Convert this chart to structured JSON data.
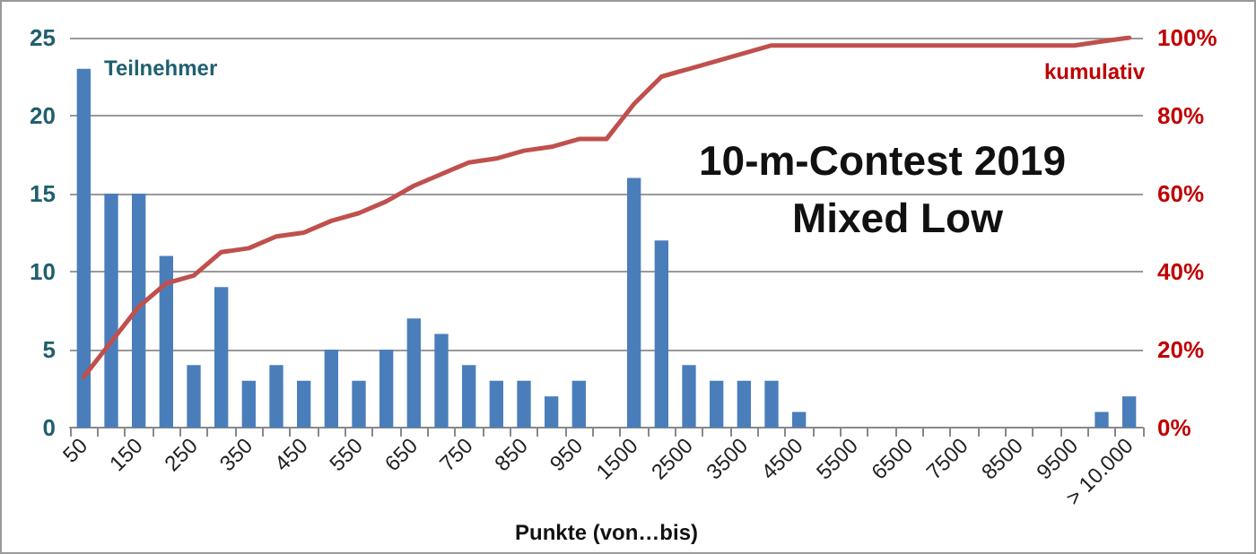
{
  "chart_data": {
    "type": "bar",
    "title": "10-m-Contest 2019",
    "subtitle": "Mixed Low",
    "xlabel": "Punkte (von…bis)",
    "ylabel": "Teilnehmer",
    "y2label": "kumulativ",
    "categories": [
      "50",
      null,
      "150",
      null,
      "250",
      null,
      "350",
      null,
      "450",
      null,
      "550",
      null,
      "650",
      null,
      "750",
      null,
      "850",
      null,
      "950",
      null,
      "1500",
      null,
      "2500",
      null,
      "3500",
      null,
      "4500",
      null,
      "5500",
      null,
      "6500",
      null,
      "7500",
      null,
      "8500",
      null,
      "9500",
      null,
      "> 10.000"
    ],
    "series": [
      {
        "color": "#4a7ebb",
        "values": [
          23,
          15,
          15,
          11,
          4,
          9,
          3,
          4,
          3,
          5,
          3,
          5,
          7,
          6,
          4,
          3,
          3,
          2,
          3,
          0,
          16,
          12,
          4,
          3,
          3,
          3,
          1,
          0,
          0,
          0,
          0,
          0,
          0,
          0,
          0,
          0,
          0,
          1,
          2
        ]
      },
      {
        "type": "line",
        "axis": "y2",
        "color": "#c0504d",
        "values": [
          13,
          22,
          31,
          37,
          39,
          45,
          46,
          49,
          50,
          53,
          55,
          58,
          62,
          65,
          68,
          69,
          71,
          72,
          74,
          74,
          83,
          90,
          92,
          94,
          96,
          98,
          98,
          98,
          98,
          98,
          98,
          98,
          98,
          98,
          98,
          98,
          98,
          99,
          100
        ]
      }
    ],
    "ylim": [
      0,
      25
    ],
    "yticks": [
      0,
      5,
      10,
      15,
      20,
      25
    ],
    "y2lim": [
      0,
      100
    ],
    "y2ticks": [
      {
        "value": 0,
        "label": "0%"
      },
      {
        "value": 20,
        "label": "20%"
      },
      {
        "value": 40,
        "label": "40%"
      },
      {
        "value": 60,
        "label": "60%"
      },
      {
        "value": 80,
        "label": "80%"
      },
      {
        "value": 100,
        "label": "100%"
      }
    ],
    "grid": "y",
    "marker": "none",
    "line_style": "solid"
  }
}
